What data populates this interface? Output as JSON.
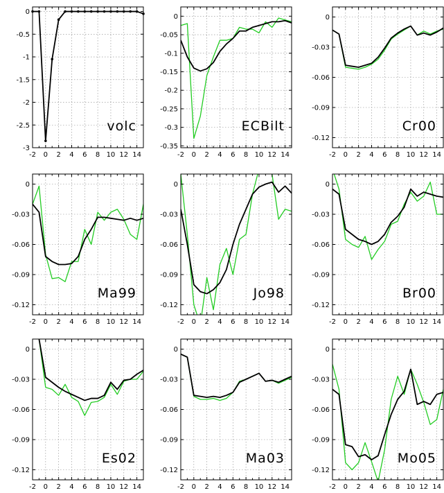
{
  "chart_data": [
    {
      "type": "line",
      "label": "volc",
      "ylim": [
        -3,
        0.1
      ],
      "yticks": [
        0,
        -0.5,
        -1,
        -1.5,
        -2,
        -2.5,
        -3
      ],
      "yticklabels": [
        "0",
        "-0.5",
        "-1",
        "-1.5",
        "-2",
        "-2.5",
        "-3"
      ],
      "x": [
        -2,
        -1,
        0,
        1,
        2,
        3,
        4,
        5,
        6,
        7,
        8,
        9,
        10,
        11,
        12,
        13,
        14,
        15
      ],
      "series": [
        {
          "color": "#000000",
          "markers": true,
          "values": [
            0,
            0,
            -2.85,
            -1.05,
            -0.18,
            0,
            0,
            0,
            0,
            0,
            0,
            0,
            0,
            0,
            0,
            0,
            0,
            -0.05
          ]
        }
      ]
    },
    {
      "type": "line",
      "label": "ECBilt",
      "ylim": [
        -0.355,
        0.025
      ],
      "yticks": [
        0,
        -0.05,
        -0.1,
        -0.15,
        -0.2,
        -0.25,
        -0.3,
        -0.35
      ],
      "yticklabels": [
        "0",
        "-0.05",
        "-0.1",
        "-0.15",
        "-0.2",
        "-0.25",
        "-0.3",
        "-0.35"
      ],
      "x": [
        -2,
        -1,
        0,
        1,
        2,
        3,
        4,
        5,
        6,
        7,
        8,
        9,
        10,
        11,
        12,
        13,
        14,
        15
      ],
      "series": [
        {
          "color": "#22cc22",
          "values": [
            -0.025,
            -0.02,
            -0.33,
            -0.27,
            -0.16,
            -0.11,
            -0.065,
            -0.065,
            -0.06,
            -0.03,
            -0.035,
            -0.035,
            -0.045,
            -0.015,
            -0.03,
            -0.005,
            -0.01,
            -0.015
          ]
        },
        {
          "color": "#000000",
          "values": [
            -0.065,
            -0.11,
            -0.14,
            -0.148,
            -0.142,
            -0.125,
            -0.095,
            -0.075,
            -0.06,
            -0.04,
            -0.04,
            -0.03,
            -0.025,
            -0.02,
            -0.015,
            -0.015,
            -0.012,
            -0.018
          ]
        }
      ]
    },
    {
      "type": "line",
      "label": "Cr00",
      "ylim": [
        -0.13,
        0.01
      ],
      "yticks": [
        0,
        -0.03,
        -0.06,
        -0.09,
        -0.12
      ],
      "yticklabels": [
        "0",
        "-0.03",
        "-0.06",
        "-0.09",
        "-0.12"
      ],
      "x": [
        -2,
        -1,
        0,
        1,
        2,
        3,
        4,
        5,
        6,
        7,
        8,
        9,
        10,
        11,
        12,
        13,
        14,
        15
      ],
      "series": [
        {
          "color": "#22cc22",
          "values": [
            -0.013,
            -0.017,
            -0.05,
            -0.051,
            -0.052,
            -0.05,
            -0.047,
            -0.042,
            -0.033,
            -0.022,
            -0.017,
            -0.013,
            -0.009,
            -0.018,
            -0.014,
            -0.017,
            -0.014,
            -0.012
          ]
        },
        {
          "color": "#000000",
          "values": [
            -0.013,
            -0.017,
            -0.048,
            -0.049,
            -0.05,
            -0.048,
            -0.046,
            -0.04,
            -0.031,
            -0.021,
            -0.016,
            -0.012,
            -0.009,
            -0.018,
            -0.016,
            -0.018,
            -0.015,
            -0.011
          ]
        }
      ]
    },
    {
      "type": "line",
      "label": "Ma99",
      "ylim": [
        -0.13,
        0.01
      ],
      "yticks": [
        0,
        -0.03,
        -0.06,
        -0.09,
        -0.12
      ],
      "yticklabels": [
        "0",
        "-0.03",
        "-0.06",
        "-0.09",
        "-0.12"
      ],
      "x": [
        -2,
        -1,
        0,
        1,
        2,
        3,
        4,
        5,
        6,
        7,
        8,
        9,
        10,
        11,
        12,
        13,
        14,
        15
      ],
      "series": [
        {
          "color": "#22cc22",
          "values": [
            -0.02,
            -0.002,
            -0.07,
            -0.094,
            -0.093,
            -0.097,
            -0.077,
            -0.077,
            -0.045,
            -0.06,
            -0.028,
            -0.036,
            -0.028,
            -0.025,
            -0.035,
            -0.05,
            -0.055,
            -0.02
          ]
        },
        {
          "color": "#000000",
          "values": [
            -0.02,
            -0.028,
            -0.072,
            -0.077,
            -0.08,
            -0.08,
            -0.079,
            -0.072,
            -0.055,
            -0.045,
            -0.033,
            -0.033,
            -0.034,
            -0.035,
            -0.036,
            -0.034,
            -0.036,
            -0.034
          ]
        }
      ]
    },
    {
      "type": "line",
      "label": "Jo98",
      "ylim": [
        -0.13,
        0.01
      ],
      "yticks": [
        0,
        -0.03,
        -0.06,
        -0.09,
        -0.12
      ],
      "yticklabels": [
        "0",
        "-0.03",
        "-0.06",
        "-0.09",
        "-0.12"
      ],
      "x": [
        -2,
        -1,
        0,
        1,
        2,
        3,
        4,
        5,
        6,
        7,
        8,
        9,
        10,
        11,
        12,
        13,
        14,
        15
      ],
      "series": [
        {
          "color": "#22cc22",
          "values": [
            0.01,
            -0.05,
            -0.12,
            -0.14,
            -0.093,
            -0.125,
            -0.08,
            -0.064,
            -0.09,
            -0.055,
            -0.05,
            -0.01,
            0.015,
            0.015,
            0.01,
            -0.035,
            -0.025,
            -0.027
          ]
        },
        {
          "color": "#000000",
          "values": [
            -0.025,
            -0.06,
            -0.1,
            -0.107,
            -0.109,
            -0.105,
            -0.098,
            -0.085,
            -0.06,
            -0.04,
            -0.025,
            -0.01,
            -0.003,
            0,
            0.002,
            -0.008,
            -0.002,
            -0.009
          ]
        }
      ]
    },
    {
      "type": "line",
      "label": "Br00",
      "ylim": [
        -0.13,
        0.01
      ],
      "yticks": [
        0,
        -0.03,
        -0.06,
        -0.09,
        -0.12
      ],
      "yticklabels": [
        "0",
        "-0.03",
        "-0.06",
        "-0.09",
        "-0.12"
      ],
      "x": [
        -2,
        -1,
        0,
        1,
        2,
        3,
        4,
        5,
        6,
        7,
        8,
        9,
        10,
        11,
        12,
        13,
        14,
        15
      ],
      "series": [
        {
          "color": "#22cc22",
          "values": [
            0.015,
            -0.005,
            -0.055,
            -0.06,
            -0.063,
            -0.052,
            -0.075,
            -0.065,
            -0.057,
            -0.04,
            -0.037,
            -0.02,
            -0.008,
            -0.017,
            -0.012,
            0.002,
            -0.03,
            -0.03
          ]
        },
        {
          "color": "#000000",
          "values": [
            -0.005,
            -0.01,
            -0.045,
            -0.05,
            -0.055,
            -0.057,
            -0.06,
            -0.057,
            -0.05,
            -0.038,
            -0.032,
            -0.023,
            -0.005,
            -0.012,
            -0.008,
            -0.01,
            -0.012,
            -0.013
          ]
        }
      ]
    },
    {
      "type": "line",
      "label": "Es02",
      "ylim": [
        -0.13,
        0.01
      ],
      "yticks": [
        0,
        -0.03,
        -0.06,
        -0.09,
        -0.12
      ],
      "yticklabels": [
        "0",
        "-0.03",
        "-0.06",
        "-0.09",
        "-0.12"
      ],
      "x": [
        -2,
        -1,
        0,
        1,
        2,
        3,
        4,
        5,
        6,
        7,
        8,
        9,
        10,
        11,
        12,
        13,
        14,
        15
      ],
      "series": [
        {
          "color": "#22cc22",
          "values": [
            0.015,
            0.01,
            -0.038,
            -0.04,
            -0.046,
            -0.035,
            -0.048,
            -0.052,
            -0.066,
            -0.053,
            -0.052,
            -0.048,
            -0.035,
            -0.045,
            -0.032,
            -0.03,
            -0.03,
            -0.022
          ]
        },
        {
          "color": "#000000",
          "values": [
            0.015,
            0.01,
            -0.028,
            -0.033,
            -0.038,
            -0.042,
            -0.045,
            -0.048,
            -0.051,
            -0.049,
            -0.049,
            -0.046,
            -0.033,
            -0.04,
            -0.031,
            -0.03,
            -0.025,
            -0.021
          ]
        }
      ]
    },
    {
      "type": "line",
      "label": "Ma03",
      "ylim": [
        -0.13,
        0.01
      ],
      "yticks": [
        0,
        -0.03,
        -0.06,
        -0.09,
        -0.12
      ],
      "yticklabels": [
        "0",
        "-0.03",
        "-0.06",
        "-0.09",
        "-0.12"
      ],
      "x": [
        -2,
        -1,
        0,
        1,
        2,
        3,
        4,
        5,
        6,
        7,
        8,
        9,
        10,
        11,
        12,
        13,
        14,
        15
      ],
      "series": [
        {
          "color": "#22cc22",
          "values": [
            -0.005,
            -0.008,
            -0.047,
            -0.05,
            -0.05,
            -0.049,
            -0.051,
            -0.049,
            -0.043,
            -0.032,
            -0.03,
            -0.027,
            -0.024,
            -0.032,
            -0.031,
            -0.034,
            -0.031,
            -0.028
          ]
        },
        {
          "color": "#000000",
          "values": [
            -0.005,
            -0.008,
            -0.046,
            -0.047,
            -0.048,
            -0.047,
            -0.048,
            -0.046,
            -0.043,
            -0.033,
            -0.03,
            -0.027,
            -0.024,
            -0.032,
            -0.031,
            -0.033,
            -0.03,
            -0.027
          ]
        }
      ]
    },
    {
      "type": "line",
      "label": "Mo05",
      "ylim": [
        -0.13,
        0.01
      ],
      "yticks": [
        0,
        -0.03,
        -0.06,
        -0.09,
        -0.12
      ],
      "yticklabels": [
        "0",
        "-0.03",
        "-0.06",
        "-0.09",
        "-0.12"
      ],
      "x": [
        -2,
        -1,
        0,
        1,
        2,
        3,
        4,
        5,
        6,
        7,
        8,
        9,
        10,
        11,
        12,
        13,
        14,
        15
      ],
      "series": [
        {
          "color": "#22cc22",
          "values": [
            -0.015,
            -0.04,
            -0.113,
            -0.12,
            -0.113,
            -0.093,
            -0.112,
            -0.132,
            -0.1,
            -0.05,
            -0.027,
            -0.045,
            -0.02,
            -0.035,
            -0.053,
            -0.075,
            -0.07,
            -0.04
          ]
        },
        {
          "color": "#000000",
          "values": [
            -0.04,
            -0.045,
            -0.095,
            -0.097,
            -0.107,
            -0.105,
            -0.11,
            -0.106,
            -0.085,
            -0.065,
            -0.05,
            -0.042,
            -0.02,
            -0.055,
            -0.052,
            -0.055,
            -0.045,
            -0.043
          ]
        }
      ]
    }
  ]
}
